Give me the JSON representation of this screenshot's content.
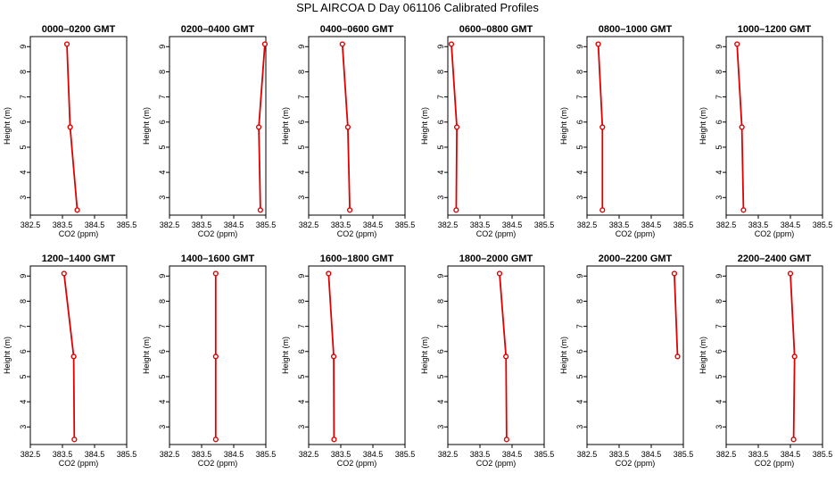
{
  "title": "SPL AIRCOA D  Day 061106  Calibrated Profiles",
  "axes": {
    "xlabel": "CO2 (ppm)",
    "ylabel": "Height (m)",
    "xticks": [
      "382.5",
      "383.5",
      "384.5",
      "385.5"
    ],
    "yticks": [
      "3",
      "4",
      "5",
      "6",
      "7",
      "8",
      "9"
    ]
  },
  "colors": {
    "series": "#e00000",
    "axes": "#000000"
  },
  "chart_data": [
    {
      "type": "line",
      "title": "0000–0200 GMT",
      "xlabel": "CO2 (ppm)",
      "ylabel": "Height (m)",
      "xlim": [
        382.5,
        385.5
      ],
      "ylim": [
        2.3,
        9.4
      ],
      "x": [
        383.96,
        383.74,
        383.64
      ],
      "y": [
        2.5,
        5.8,
        9.1
      ]
    },
    {
      "type": "line",
      "title": "0200–0400 GMT",
      "xlabel": "CO2 (ppm)",
      "ylabel": "Height (m)",
      "xlim": [
        382.5,
        385.5
      ],
      "ylim": [
        2.3,
        9.4
      ],
      "x": [
        385.33,
        385.28,
        385.47
      ],
      "y": [
        2.5,
        5.8,
        9.1
      ]
    },
    {
      "type": "line",
      "title": "0400–0600 GMT",
      "xlabel": "CO2 (ppm)",
      "ylabel": "Height (m)",
      "xlim": [
        382.5,
        385.5
      ],
      "ylim": [
        2.3,
        9.4
      ],
      "x": [
        383.78,
        383.72,
        383.55
      ],
      "y": [
        2.5,
        5.8,
        9.1
      ]
    },
    {
      "type": "line",
      "title": "0600–0800 GMT",
      "xlabel": "CO2 (ppm)",
      "ylabel": "Height (m)",
      "xlim": [
        382.5,
        385.5
      ],
      "ylim": [
        2.3,
        9.4
      ],
      "x": [
        382.76,
        382.78,
        382.61
      ],
      "y": [
        2.5,
        5.8,
        9.1
      ]
    },
    {
      "type": "line",
      "title": "0800–1000 GMT",
      "xlabel": "CO2 (ppm)",
      "ylabel": "Height (m)",
      "xlim": [
        382.5,
        385.5
      ],
      "ylim": [
        2.3,
        9.4
      ],
      "x": [
        382.98,
        382.98,
        382.85
      ],
      "y": [
        2.5,
        5.8,
        9.1
      ]
    },
    {
      "type": "line",
      "title": "1000–1200 GMT",
      "xlabel": "CO2 (ppm)",
      "ylabel": "Height (m)",
      "xlim": [
        382.5,
        385.5
      ],
      "ylim": [
        2.3,
        9.4
      ],
      "x": [
        383.04,
        382.99,
        382.84
      ],
      "y": [
        2.5,
        5.8,
        9.1
      ]
    },
    {
      "type": "line",
      "title": "1200–1400 GMT",
      "xlabel": "CO2 (ppm)",
      "ylabel": "Height (m)",
      "xlim": [
        382.5,
        385.5
      ],
      "ylim": [
        2.3,
        9.4
      ],
      "x": [
        383.87,
        383.85,
        383.55
      ],
      "y": [
        2.5,
        5.8,
        9.1
      ]
    },
    {
      "type": "line",
      "title": "1400–1600 GMT",
      "xlabel": "CO2 (ppm)",
      "ylabel": "Height (m)",
      "xlim": [
        382.5,
        385.5
      ],
      "ylim": [
        2.3,
        9.4
      ],
      "x": [
        383.94,
        383.94,
        383.94
      ],
      "y": [
        2.5,
        5.8,
        9.1
      ]
    },
    {
      "type": "line",
      "title": "1600–1800 GMT",
      "xlabel": "CO2 (ppm)",
      "ylabel": "Height (m)",
      "xlim": [
        382.5,
        385.5
      ],
      "ylim": [
        2.3,
        9.4
      ],
      "x": [
        383.29,
        383.28,
        383.12
      ],
      "y": [
        2.5,
        5.8,
        9.1
      ]
    },
    {
      "type": "line",
      "title": "1800–2000 GMT",
      "xlabel": "CO2 (ppm)",
      "ylabel": "Height (m)",
      "xlim": [
        382.5,
        385.5
      ],
      "ylim": [
        2.3,
        9.4
      ],
      "x": [
        384.33,
        384.31,
        384.11
      ],
      "y": [
        2.5,
        5.8,
        9.1
      ]
    },
    {
      "type": "line",
      "title": "2000–2200 GMT",
      "xlabel": "CO2 (ppm)",
      "ylabel": "Height (m)",
      "xlim": [
        382.5,
        385.5
      ],
      "ylim": [
        2.3,
        9.4
      ],
      "x": [
        385.32,
        385.22
      ],
      "y": [
        5.8,
        9.1
      ]
    },
    {
      "type": "line",
      "title": "2200–2400 GMT",
      "xlabel": "CO2 (ppm)",
      "ylabel": "Height (m)",
      "xlim": [
        382.5,
        385.5
      ],
      "ylim": [
        2.3,
        9.4
      ],
      "x": [
        384.6,
        384.63,
        384.5
      ],
      "y": [
        2.5,
        5.8,
        9.1
      ]
    }
  ]
}
